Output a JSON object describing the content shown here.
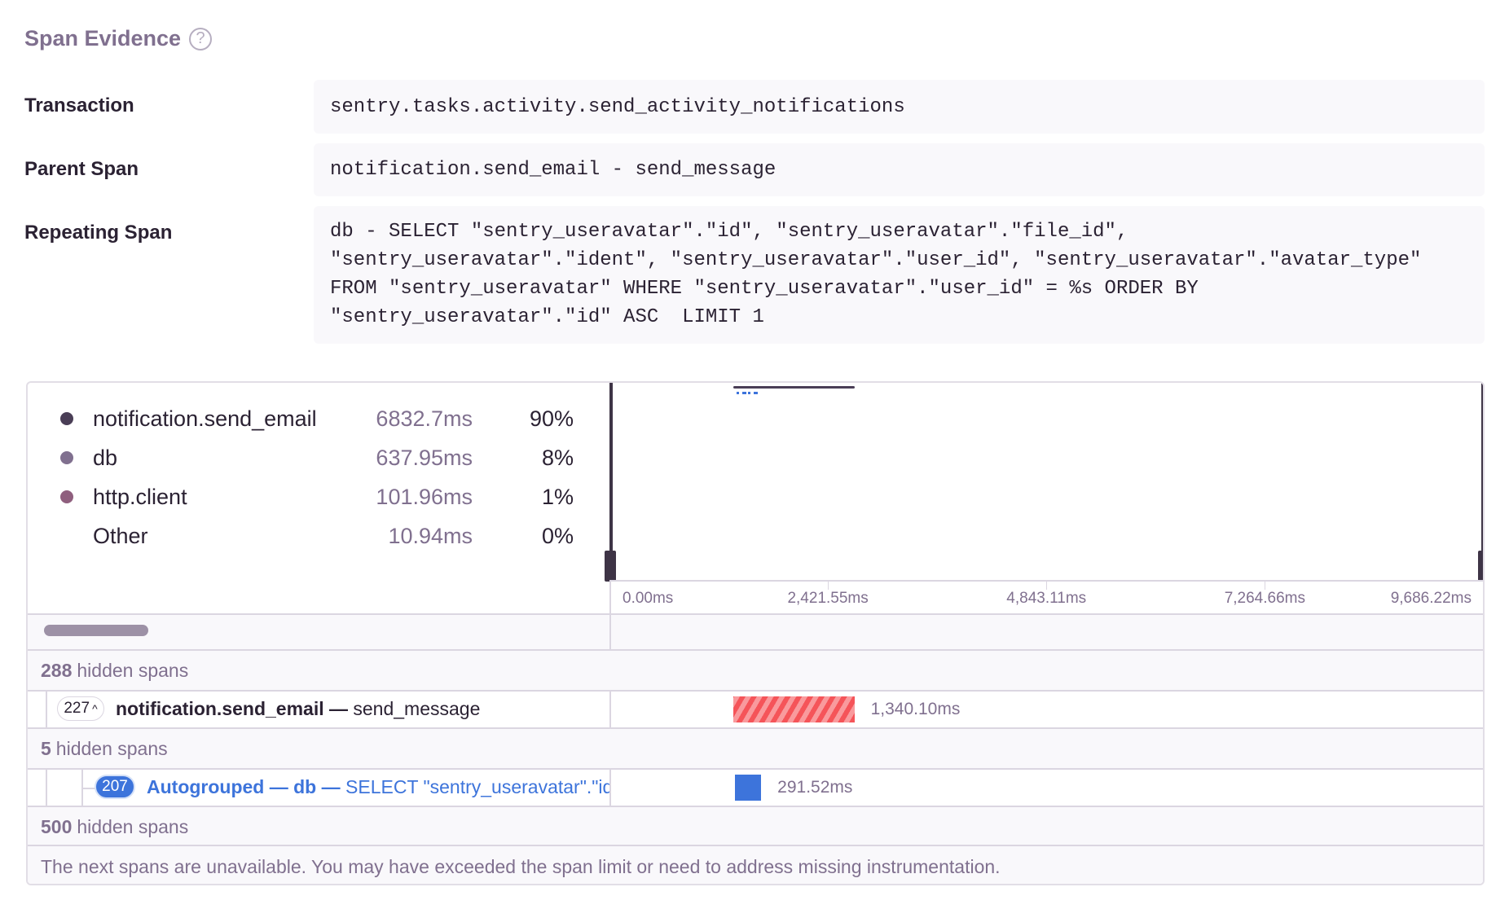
{
  "section": {
    "title": "Span Evidence",
    "help_icon": "question-circle-icon"
  },
  "evidence": {
    "transaction_label": "Transaction",
    "transaction_value": "sentry.tasks.activity.send_activity_notifications",
    "parent_span_label": "Parent Span",
    "parent_span_value": "notification.send_email - send_message",
    "repeating_span_label": "Repeating Span",
    "repeating_span_lines": [
      "db - SELECT \"sentry_useravatar\".\"id\", \"sentry_useravatar\".\"file_id\",",
      "\"sentry_useravatar\".\"ident\", \"sentry_useravatar\".\"user_id\", \"sentry_useravatar\".\"avatar_type\"",
      "FROM \"sentry_useravatar\" WHERE \"sentry_useravatar\".\"user_id\" = %s ORDER BY",
      "\"sentry_useravatar\".\"id\" ASC  LIMIT 1"
    ]
  },
  "ops_breakdown": [
    {
      "name": "notification.send_email",
      "duration": "6832.7ms",
      "percent": "90%",
      "color": "#4a3e56"
    },
    {
      "name": "db",
      "duration": "637.95ms",
      "percent": "8%",
      "color": "#80708f"
    },
    {
      "name": "http.client",
      "duration": "101.96ms",
      "percent": "1%",
      "color": "#8f5f7e"
    },
    {
      "name": "Other",
      "duration": "10.94ms",
      "percent": "0%",
      "color": null
    }
  ],
  "timeline": {
    "ticks": [
      {
        "value": 0,
        "label": "0.00ms"
      },
      {
        "value": 2421.55,
        "label": "2,421.55ms"
      },
      {
        "value": 4843.11,
        "label": "4,843.11ms"
      },
      {
        "value": 7264.66,
        "label": "7,264.66ms"
      },
      {
        "value": 9686.22,
        "label": "9,686.22ms"
      }
    ],
    "range_ms": [
      0,
      9700
    ]
  },
  "rows": [
    {
      "type": "hidden",
      "count": "288",
      "text": "hidden spans"
    },
    {
      "type": "span",
      "badge": "227",
      "badge_icon": "chevron-up-icon",
      "op": "notification.send_email",
      "sep": " — ",
      "desc": "send_message",
      "duration": "1,340.10ms",
      "start_ms": 1375,
      "duration_ms": 1340.1,
      "color": "#f55459"
    },
    {
      "type": "hidden",
      "count": "5",
      "text": "hidden spans"
    },
    {
      "type": "span",
      "badge": "207",
      "op": "Autogrouped — db — ",
      "desc": "SELECT \"sentry_useravatar\".\"id\", \"sentry_useravatar\".\"file_id\"",
      "duration": "291.52ms",
      "start_ms": 1390,
      "duration_ms": 291.52,
      "color": "#3d74db"
    },
    {
      "type": "hidden",
      "count": "500",
      "text": "hidden spans"
    }
  ],
  "footer_message": "The next spans are unavailable. You may have exceeded the span limit or need to address missing instrumentation."
}
